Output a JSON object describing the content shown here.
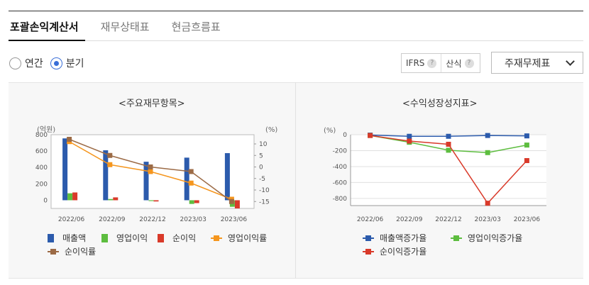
{
  "tabs": [
    {
      "label": "포괄손익계산서",
      "active": true
    },
    {
      "label": "재무상태표",
      "active": false
    },
    {
      "label": "현금흐름표",
      "active": false
    }
  ],
  "period": {
    "options": [
      {
        "label": "연간",
        "checked": false
      },
      {
        "label": "분기",
        "checked": true
      }
    ]
  },
  "standard": {
    "ifrs_label": "IFRS",
    "calc_label": "산식",
    "help_glyph": "?"
  },
  "statement_select": {
    "value": "주재무제표"
  },
  "chart_data": [
    {
      "type": "bar",
      "title": "<주요재무항목>",
      "y_left_label": "(억원)",
      "y_right_label": "(%)",
      "categories": [
        "2022/06",
        "2022/09",
        "2022/12",
        "2023/03",
        "2023/06"
      ],
      "y_left_ticks": [
        "800",
        "600",
        "400",
        "200",
        "0"
      ],
      "y_right_ticks": [
        "10",
        "5",
        "0",
        "-5",
        "-10",
        "-15"
      ],
      "y_left_range": [
        -100,
        800
      ],
      "y_right_range": [
        -18,
        14
      ],
      "colors": {
        "sales": "#2c5bac",
        "op_income": "#5dbd3f",
        "net_income": "#d93a2a",
        "op_margin": "#f5961e",
        "net_margin": "#9c6b46"
      },
      "series": [
        {
          "name": "매출액",
          "kind": "bar",
          "axis": "left",
          "values": [
            755,
            610,
            470,
            520,
            575
          ]
        },
        {
          "name": "영업이익",
          "kind": "bar",
          "axis": "left",
          "values": [
            85,
            15,
            -10,
            -45,
            -80
          ]
        },
        {
          "name": "순이익",
          "kind": "bar",
          "axis": "left",
          "values": [
            95,
            35,
            -15,
            -35,
            -100
          ]
        },
        {
          "name": "영업이익률",
          "kind": "line",
          "axis": "right",
          "values": [
            11,
            1,
            -2,
            -7,
            -14
          ]
        },
        {
          "name": "순이익률",
          "kind": "line",
          "axis": "right",
          "values": [
            12,
            5,
            0,
            -2,
            -15
          ]
        }
      ]
    },
    {
      "type": "line",
      "title": "<수익성장성지표>",
      "y_label": "(%)",
      "categories": [
        "2022/06",
        "2022/09",
        "2022/12",
        "2023/03",
        "2023/06"
      ],
      "y_ticks": [
        "0",
        "-200",
        "-400",
        "-600",
        "-800"
      ],
      "y_range": [
        -890,
        0
      ],
      "colors": {
        "sales_growth": "#2c5bac",
        "op_growth": "#5dbd3f",
        "net_growth": "#d93a2a"
      },
      "series": [
        {
          "name": "매출액증가율",
          "values": [
            -5,
            -20,
            -20,
            -10,
            -15
          ]
        },
        {
          "name": "영업이익증가율",
          "values": [
            -10,
            -95,
            -195,
            -225,
            -130
          ]
        },
        {
          "name": "순이익증가율",
          "values": [
            -10,
            -80,
            -120,
            -860,
            -325
          ]
        }
      ]
    }
  ]
}
